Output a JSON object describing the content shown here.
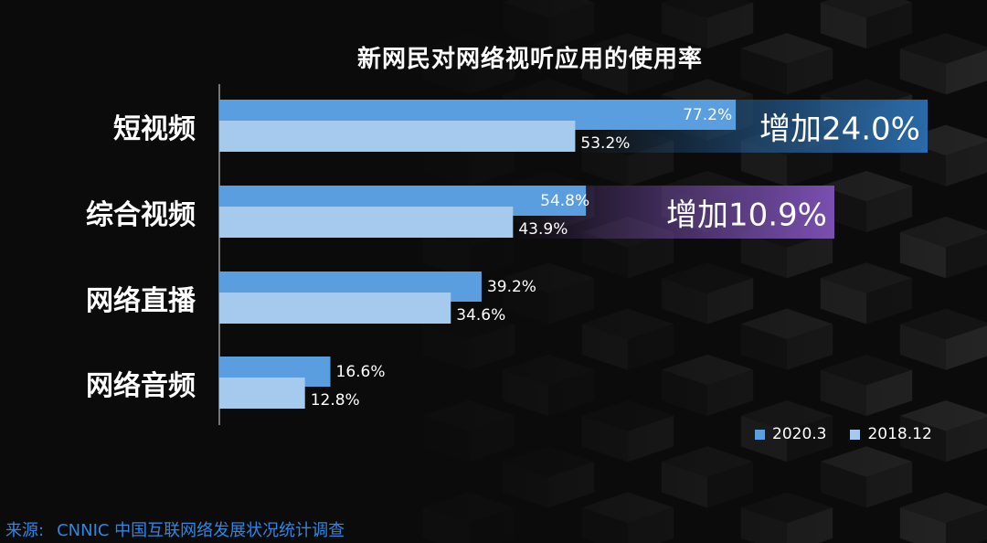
{
  "chart_data": {
    "type": "bar",
    "orientation": "horizontal",
    "title": "新网民对网络视听应用的使用率",
    "categories": [
      "短视频",
      "综合视频",
      "网络直播",
      "网络音频"
    ],
    "series": [
      {
        "name": "2020.3",
        "values": [
          77.2,
          54.8,
          39.2,
          16.6
        ],
        "labels": [
          "77.2%",
          "54.8%",
          "39.2%",
          "16.6%"
        ]
      },
      {
        "name": "2018.12",
        "values": [
          53.2,
          43.9,
          34.6,
          12.8
        ],
        "labels": [
          "53.2%",
          "43.9%",
          "34.6%",
          "12.8%"
        ]
      }
    ],
    "annotations": [
      {
        "category": "短视频",
        "text": "增加24.0%",
        "value": 24.0
      },
      {
        "category": "综合视频",
        "text": "增加10.9%",
        "value": 10.9
      }
    ],
    "legend_position": "bottom-right",
    "grid": false
  },
  "colors": {
    "series_2020": "#5a9ee0",
    "series_2018": "#a6c9ee",
    "increase_short_video": "#2a6aa8",
    "increase_comprehensive_video": "#7a4fb0",
    "source_text": "#2f86e0"
  },
  "footer": {
    "source_label": "来源:",
    "source_text": "CNNIC 中国互联网络发展状况统计调查"
  }
}
